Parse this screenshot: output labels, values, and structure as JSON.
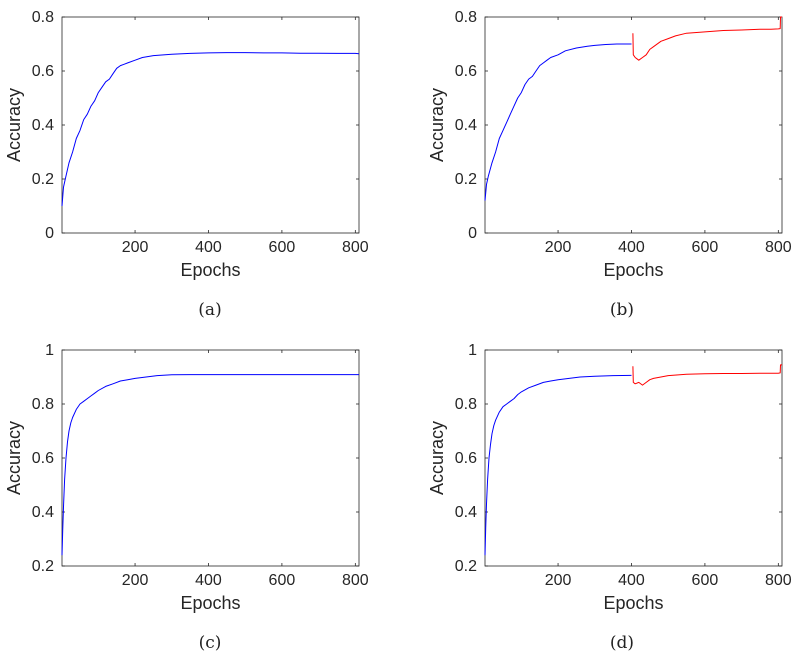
{
  "chart_data": [
    {
      "panel": "(a)",
      "type": "line",
      "xlabel": "Epochs",
      "ylabel": "Accuracy",
      "xlim": [
        1,
        810
      ],
      "ylim": [
        0,
        0.8
      ],
      "xticks": [
        200,
        400,
        600,
        800
      ],
      "yticks": [
        0,
        0.2,
        0.4,
        0.6,
        0.8
      ],
      "grid": false,
      "series": [
        {
          "color": "#0000ff",
          "x": [
            1,
            5,
            10,
            20,
            30,
            40,
            50,
            60,
            70,
            80,
            90,
            100,
            110,
            120,
            130,
            140,
            150,
            160,
            170,
            180,
            200,
            220,
            250,
            300,
            350,
            400,
            450,
            500,
            550,
            600,
            650,
            700,
            750,
            800,
            810
          ],
          "y": [
            0.1,
            0.17,
            0.2,
            0.26,
            0.3,
            0.35,
            0.38,
            0.42,
            0.44,
            0.47,
            0.49,
            0.52,
            0.54,
            0.56,
            0.57,
            0.59,
            0.61,
            0.62,
            0.625,
            0.63,
            0.64,
            0.65,
            0.657,
            0.662,
            0.665,
            0.667,
            0.668,
            0.668,
            0.667,
            0.667,
            0.666,
            0.666,
            0.665,
            0.665,
            0.664
          ]
        }
      ]
    },
    {
      "panel": "(b)",
      "type": "line",
      "xlabel": "Epochs",
      "ylabel": "Accuracy",
      "xlim": [
        1,
        810
      ],
      "ylim": [
        0,
        0.8
      ],
      "xticks": [
        200,
        400,
        600,
        800
      ],
      "yticks": [
        0,
        0.2,
        0.4,
        0.6,
        0.8
      ],
      "grid": false,
      "series": [
        {
          "color": "#0000ff",
          "x": [
            1,
            5,
            10,
            20,
            30,
            40,
            50,
            60,
            70,
            80,
            90,
            100,
            110,
            120,
            130,
            140,
            150,
            160,
            170,
            180,
            200,
            220,
            250,
            280,
            300,
            330,
            360,
            390,
            400
          ],
          "y": [
            0.12,
            0.18,
            0.21,
            0.26,
            0.3,
            0.35,
            0.38,
            0.41,
            0.44,
            0.47,
            0.5,
            0.52,
            0.55,
            0.57,
            0.58,
            0.6,
            0.62,
            0.63,
            0.64,
            0.65,
            0.66,
            0.675,
            0.685,
            0.692,
            0.695,
            0.698,
            0.7,
            0.7,
            0.7
          ]
        },
        {
          "color": "#ff0000",
          "x": [
            404,
            405,
            410,
            420,
            430,
            440,
            450,
            460,
            480,
            500,
            520,
            550,
            600,
            650,
            700,
            750,
            780,
            800,
            805,
            806,
            810
          ],
          "y": [
            0.74,
            0.66,
            0.65,
            0.64,
            0.65,
            0.66,
            0.68,
            0.69,
            0.71,
            0.72,
            0.73,
            0.74,
            0.745,
            0.75,
            0.752,
            0.755,
            0.755,
            0.756,
            0.757,
            0.8,
            0.8
          ]
        }
      ]
    },
    {
      "panel": "(c)",
      "type": "line",
      "xlabel": "Epochs",
      "ylabel": "Accuracy",
      "xlim": [
        1,
        810
      ],
      "ylim": [
        0.2,
        1
      ],
      "xticks": [
        200,
        400,
        600,
        800
      ],
      "yticks": [
        0.2,
        0.4,
        0.6,
        0.8,
        1
      ],
      "grid": false,
      "series": [
        {
          "color": "#0000ff",
          "x": [
            1,
            3,
            5,
            8,
            12,
            16,
            20,
            25,
            30,
            40,
            50,
            60,
            70,
            80,
            90,
            100,
            120,
            140,
            160,
            180,
            200,
            230,
            260,
            300,
            350,
            400,
            500,
            600,
            700,
            800,
            810
          ],
          "y": [
            0.24,
            0.33,
            0.42,
            0.52,
            0.6,
            0.66,
            0.7,
            0.73,
            0.75,
            0.78,
            0.8,
            0.81,
            0.82,
            0.83,
            0.84,
            0.85,
            0.865,
            0.875,
            0.885,
            0.89,
            0.895,
            0.9,
            0.905,
            0.908,
            0.909,
            0.909,
            0.909,
            0.909,
            0.909,
            0.909,
            0.909
          ]
        }
      ]
    },
    {
      "panel": "(d)",
      "type": "line",
      "xlabel": "Epochs",
      "ylabel": "Accuracy",
      "xlim": [
        1,
        810
      ],
      "ylim": [
        0.2,
        1
      ],
      "xticks": [
        200,
        400,
        600,
        800
      ],
      "yticks": [
        0.2,
        0.4,
        0.6,
        0.8,
        1
      ],
      "grid": false,
      "series": [
        {
          "color": "#0000ff",
          "x": [
            1,
            3,
            5,
            8,
            12,
            16,
            20,
            25,
            30,
            40,
            50,
            60,
            70,
            80,
            90,
            100,
            120,
            140,
            160,
            180,
            200,
            230,
            260,
            300,
            350,
            400
          ],
          "y": [
            0.24,
            0.34,
            0.43,
            0.52,
            0.6,
            0.65,
            0.69,
            0.72,
            0.74,
            0.77,
            0.79,
            0.8,
            0.81,
            0.82,
            0.835,
            0.845,
            0.86,
            0.87,
            0.88,
            0.885,
            0.89,
            0.895,
            0.9,
            0.903,
            0.905,
            0.906
          ]
        },
        {
          "color": "#ff0000",
          "x": [
            404,
            405,
            410,
            420,
            430,
            440,
            450,
            460,
            480,
            500,
            550,
            600,
            650,
            700,
            750,
            800,
            805,
            806,
            810
          ],
          "y": [
            0.94,
            0.88,
            0.875,
            0.88,
            0.87,
            0.88,
            0.89,
            0.895,
            0.9,
            0.905,
            0.91,
            0.912,
            0.913,
            0.913,
            0.914,
            0.914,
            0.915,
            0.945,
            0.945
          ]
        }
      ]
    }
  ]
}
